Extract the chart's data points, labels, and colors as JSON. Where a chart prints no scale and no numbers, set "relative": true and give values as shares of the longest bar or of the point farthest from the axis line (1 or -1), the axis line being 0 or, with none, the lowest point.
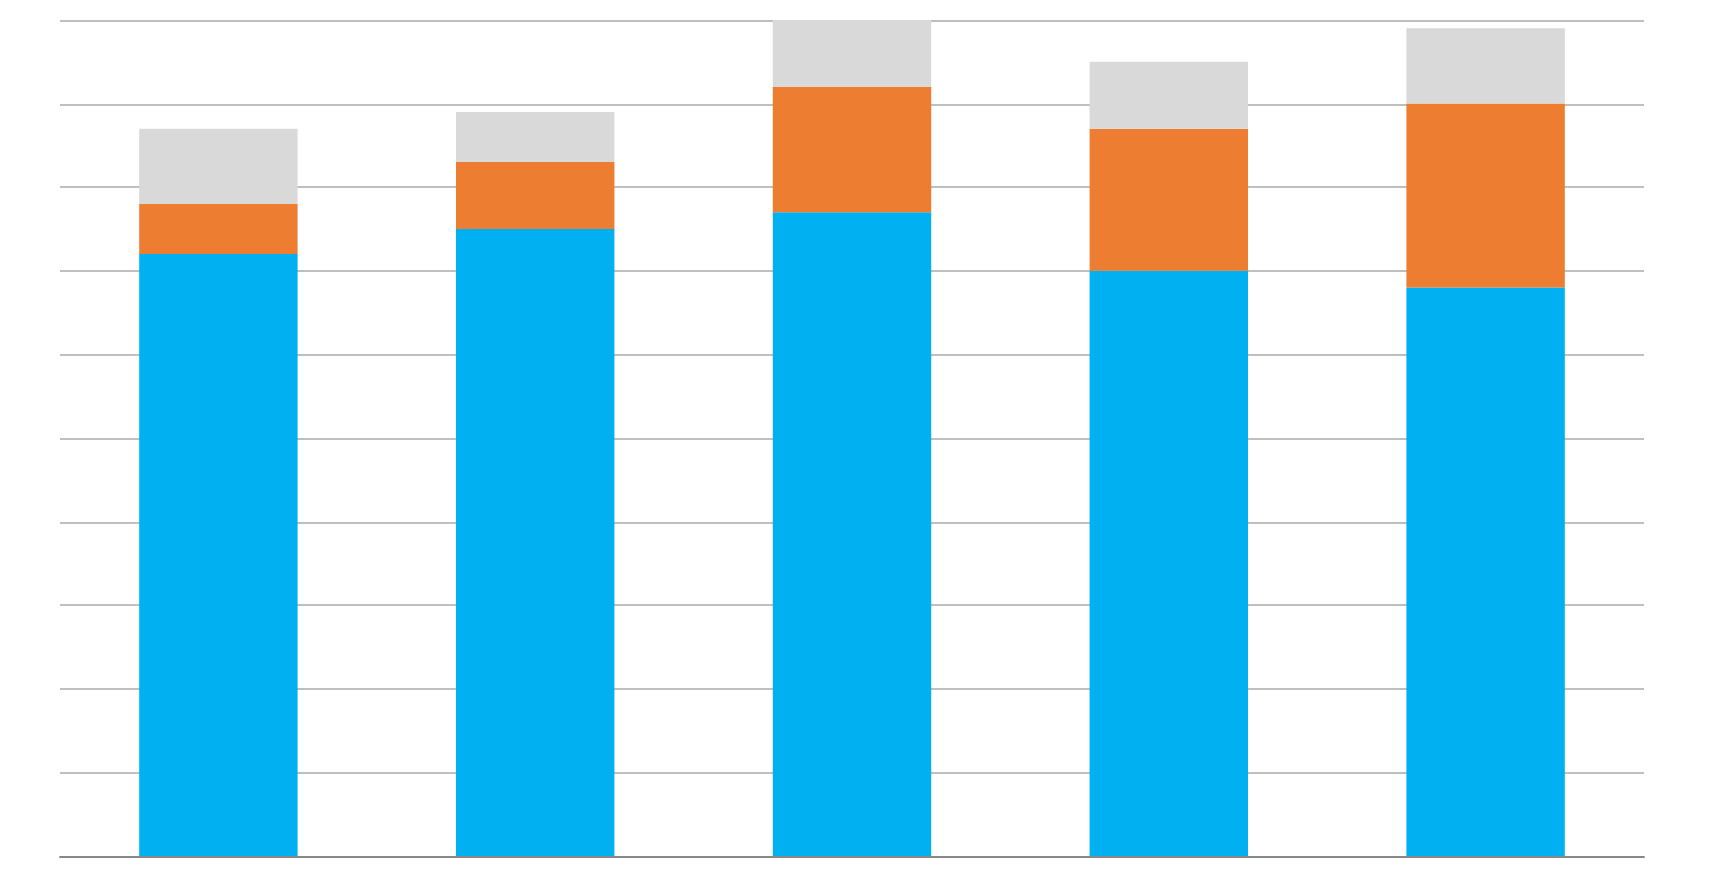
{
  "chart_data": {
    "type": "bar",
    "stacked": true,
    "relative": true,
    "grid": "y",
    "categories": [
      null,
      null,
      null,
      null,
      null
    ],
    "series": [
      {
        "color": "#00b0f0",
        "values": [
          0.72,
          0.75,
          0.77,
          0.7,
          0.68
        ]
      },
      {
        "color": "#ed7d31",
        "values": [
          0.06,
          0.08,
          0.15,
          0.17,
          0.22
        ]
      },
      {
        "color": "#d9d9d9",
        "values": [
          0.09,
          0.06,
          0.08,
          0.08,
          0.09
        ]
      }
    ]
  }
}
